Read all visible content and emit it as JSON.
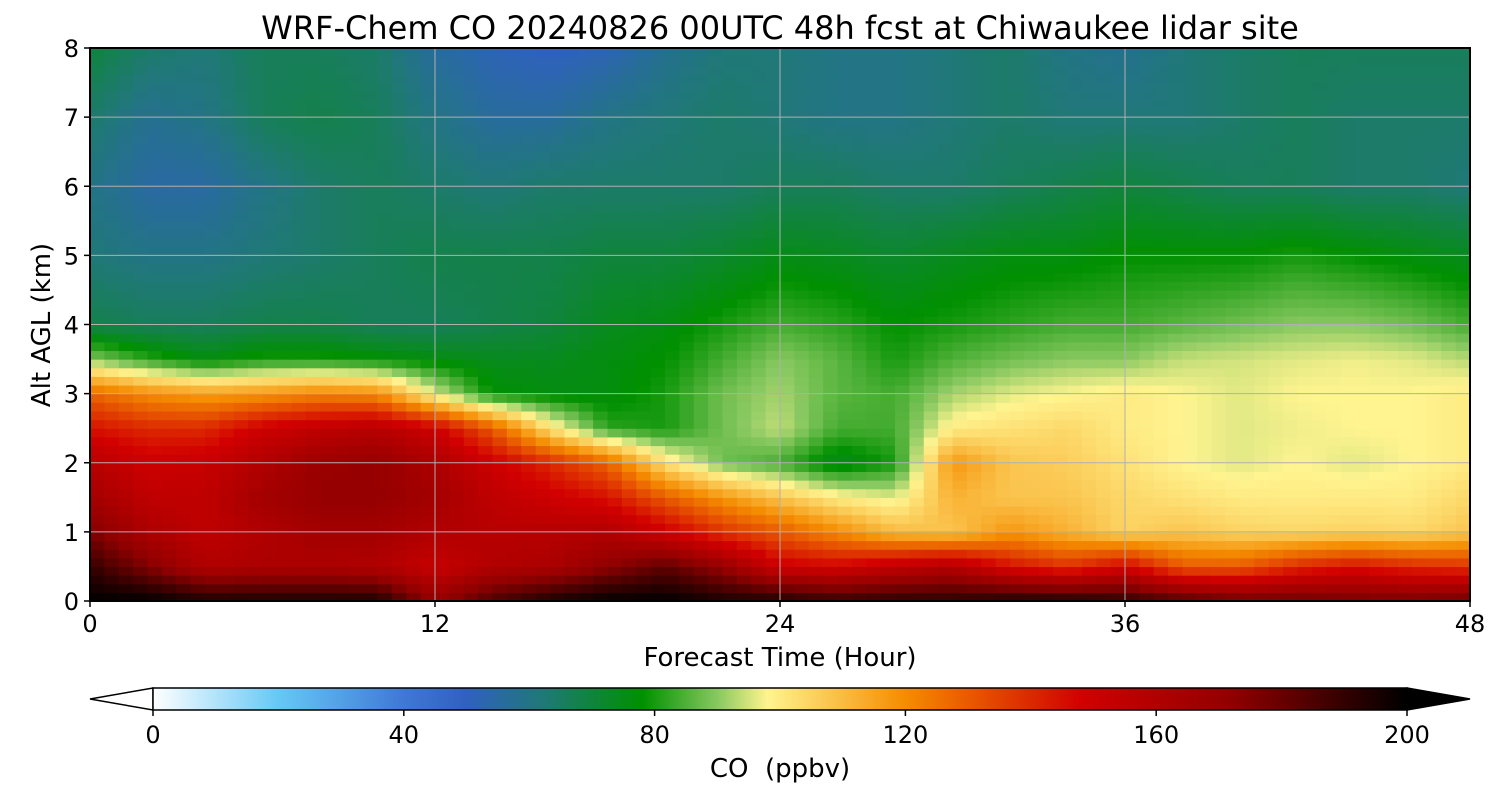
{
  "chart_data": {
    "type": "heatmap",
    "title": "WRF-Chem CO  20240826 00UTC 48h fcst at Chiwaukee lidar site",
    "xlabel": "Forecast Time (Hour)",
    "ylabel": "Alt AGL (km)",
    "xlim": [
      0,
      48
    ],
    "ylim": [
      0,
      8
    ],
    "x_ticks": [
      0,
      12,
      24,
      36,
      48
    ],
    "y_ticks": [
      0,
      1,
      2,
      3,
      4,
      5,
      6,
      7,
      8
    ],
    "grid": true,
    "colorbar": {
      "label": "CO  (ppbv)",
      "min": 0,
      "max": 200,
      "ticks": [
        0,
        40,
        80,
        120,
        160,
        200
      ],
      "extend": "both",
      "orientation": "horizontal",
      "stops": [
        {
          "value": 0,
          "color": "#ffffff"
        },
        {
          "value": 20,
          "color": "#66c8f5"
        },
        {
          "value": 40,
          "color": "#3f78d6"
        },
        {
          "value": 50,
          "color": "#3060c0"
        },
        {
          "value": 62,
          "color": "#207878"
        },
        {
          "value": 78,
          "color": "#009000"
        },
        {
          "value": 90,
          "color": "#88c860"
        },
        {
          "value": 98,
          "color": "#fff490"
        },
        {
          "value": 120,
          "color": "#f58c00"
        },
        {
          "value": 148,
          "color": "#d20000"
        },
        {
          "value": 172,
          "color": "#900000"
        },
        {
          "value": 200,
          "color": "#000000"
        }
      ]
    },
    "x": [
      0,
      2,
      4,
      6,
      8,
      10,
      12,
      14,
      16,
      18,
      20,
      22,
      24,
      26,
      28,
      30,
      32,
      34,
      36,
      38,
      40,
      42,
      44,
      46,
      48
    ],
    "y": [
      0,
      0.5,
      1,
      1.5,
      2,
      2.5,
      3,
      3.5,
      4,
      5,
      6,
      7,
      8
    ],
    "z": [
      [
        200,
        200,
        195,
        195,
        195,
        195,
        170,
        185,
        195,
        200,
        200,
        195,
        195,
        190,
        192,
        192,
        195,
        195,
        192,
        185,
        180,
        180,
        178,
        178,
        180
      ],
      [
        190,
        175,
        160,
        162,
        162,
        160,
        152,
        160,
        162,
        172,
        182,
        170,
        150,
        148,
        155,
        160,
        145,
        138,
        148,
        130,
        130,
        140,
        145,
        140,
        138
      ],
      [
        175,
        162,
        155,
        160,
        165,
        165,
        160,
        158,
        158,
        160,
        150,
        138,
        130,
        120,
        110,
        108,
        118,
        112,
        105,
        108,
        105,
        104,
        105,
        104,
        108
      ],
      [
        165,
        155,
        155,
        165,
        170,
        170,
        165,
        155,
        150,
        145,
        130,
        118,
        108,
        100,
        96,
        112,
        108,
        108,
        104,
        102,
        100,
        100,
        100,
        100,
        104
      ],
      [
        158,
        150,
        152,
        160,
        168,
        170,
        162,
        150,
        140,
        128,
        102,
        88,
        84,
        74,
        80,
        118,
        108,
        106,
        102,
        98,
        96,
        98,
        96,
        98,
        100
      ],
      [
        145,
        140,
        140,
        150,
        155,
        158,
        150,
        130,
        102,
        82,
        80,
        88,
        94,
        84,
        84,
        100,
        102,
        104,
        100,
        98,
        96,
        97,
        98,
        98,
        100
      ],
      [
        128,
        120,
        116,
        118,
        122,
        120,
        96,
        78,
        76,
        76,
        80,
        88,
        92,
        86,
        84,
        92,
        96,
        98,
        100,
        98,
        96,
        98,
        98,
        98,
        100
      ],
      [
        90,
        82,
        76,
        80,
        80,
        78,
        76,
        74,
        74,
        76,
        78,
        84,
        90,
        86,
        80,
        85,
        88,
        90,
        90,
        94,
        95,
        96,
        97,
        96,
        93
      ],
      [
        68,
        66,
        66,
        68,
        68,
        66,
        66,
        68,
        70,
        74,
        76,
        80,
        84,
        82,
        78,
        80,
        82,
        84,
        84,
        86,
        88,
        90,
        90,
        88,
        84
      ],
      [
        62,
        60,
        60,
        62,
        64,
        66,
        68,
        68,
        68,
        70,
        70,
        72,
        75,
        74,
        72,
        74,
        76,
        76,
        78,
        78,
        78,
        80,
        78,
        76,
        74
      ],
      [
        60,
        55,
        55,
        60,
        64,
        66,
        64,
        62,
        64,
        64,
        64,
        64,
        66,
        66,
        64,
        64,
        66,
        68,
        70,
        68,
        66,
        66,
        64,
        64,
        62
      ],
      [
        64,
        58,
        60,
        66,
        68,
        66,
        60,
        56,
        56,
        60,
        62,
        64,
        62,
        60,
        60,
        62,
        64,
        62,
        62,
        62,
        64,
        66,
        64,
        64,
        64
      ],
      [
        70,
        64,
        62,
        66,
        66,
        64,
        56,
        52,
        50,
        52,
        58,
        62,
        62,
        60,
        60,
        62,
        64,
        60,
        58,
        62,
        64,
        66,
        66,
        66,
        66
      ]
    ]
  }
}
